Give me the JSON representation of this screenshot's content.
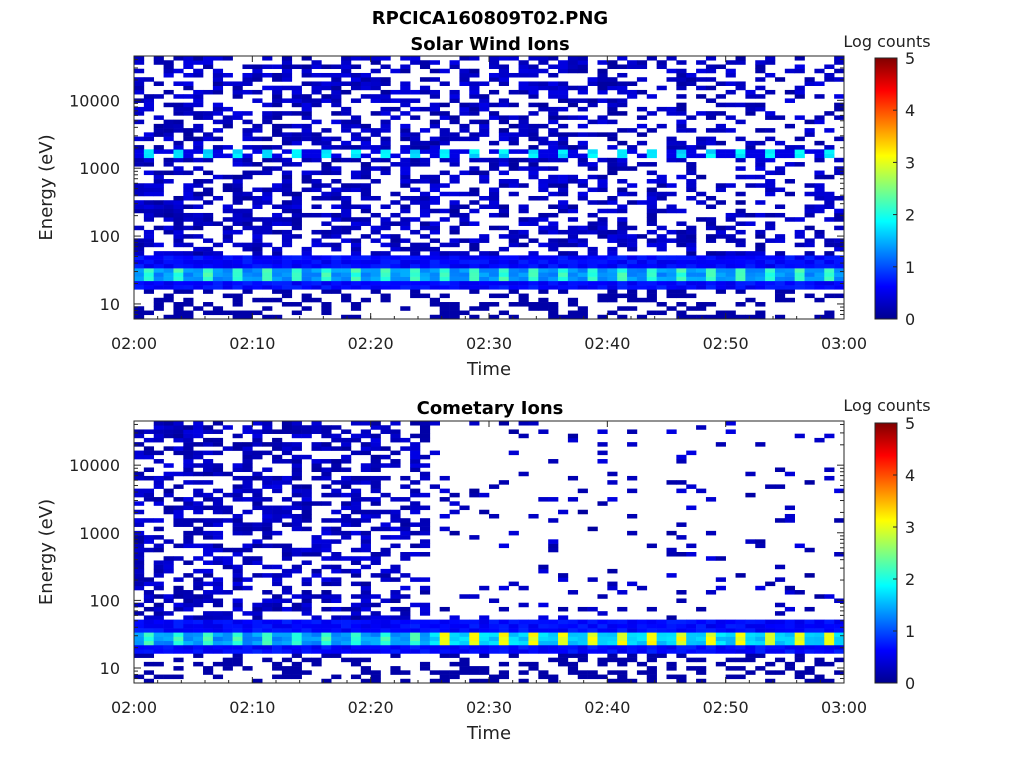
{
  "figure_title": "RPCICA160809T02.PNG",
  "colors": {
    "background": "#ffffff",
    "axes": "#262626",
    "colormap": "jet"
  },
  "chart_data": [
    {
      "type": "heatmap",
      "title": "Solar Wind Ions",
      "xlabel": "Time",
      "ylabel": "Energy (eV)",
      "x_ticks": [
        "02:00",
        "02:10",
        "02:20",
        "02:30",
        "02:40",
        "02:50",
        "03:00"
      ],
      "y_ticks": [
        "10",
        "100",
        "1000",
        "10000"
      ],
      "y_scale": "log",
      "ylim": [
        6,
        45000
      ],
      "x_range": [
        "02:00",
        "03:00"
      ],
      "colorbar": {
        "label": "Log counts",
        "range": [
          0,
          5
        ],
        "ticks": [
          "0",
          "1",
          "2",
          "3",
          "4",
          "5"
        ]
      },
      "grid": false,
      "bands": [
        {
          "energy_range_ev": [
            18,
            50
          ],
          "log_counts_range": [
            0.8,
            2.0
          ],
          "time_range": [
            "02:00",
            "03:00"
          ],
          "note": ""
        },
        {
          "energy_eV": 1700,
          "log_counts": 1.7,
          "time_range": [
            "02:00",
            "03:00"
          ]
        }
      ]
    },
    {
      "type": "heatmap",
      "title": "Cometary Ions",
      "xlabel": "Time",
      "ylabel": "Energy (eV)",
      "x_ticks": [
        "02:00",
        "02:10",
        "02:20",
        "02:30",
        "02:40",
        "02:50",
        "03:00"
      ],
      "y_ticks": [
        "10",
        "100",
        "1000",
        "10000"
      ],
      "y_scale": "log",
      "ylim": [
        6,
        45000
      ],
      "x_range": [
        "02:00",
        "03:00"
      ],
      "colorbar": {
        "label": "Log counts",
        "range": [
          0,
          5
        ],
        "ticks": [
          "0",
          "1",
          "2",
          "3",
          "4",
          "5"
        ]
      },
      "grid": false,
      "bands": [
        {
          "energy_range_ev": [
            18,
            50
          ],
          "log_counts_range": [
            0.8,
            2.6
          ],
          "time_range": [
            "02:00",
            "03:00"
          ]
        },
        {
          "high_energy_noise_until": "02:25"
        }
      ]
    }
  ]
}
